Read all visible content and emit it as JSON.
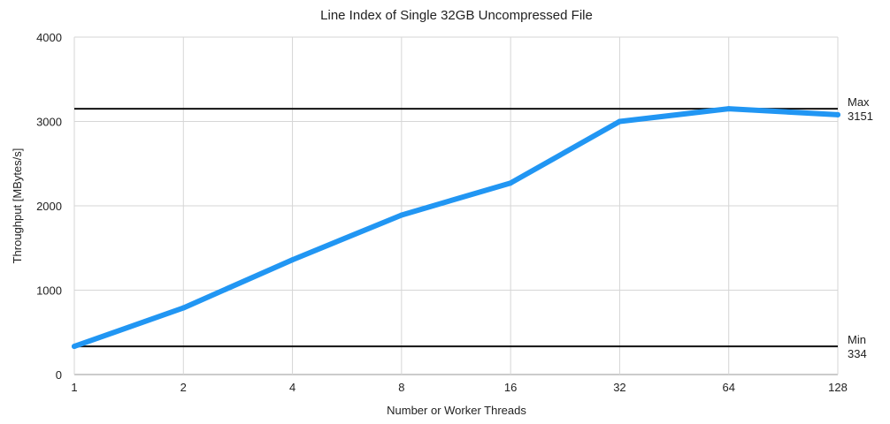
{
  "chart_data": {
    "type": "line",
    "title": "Line Index of Single 32GB Uncompressed File",
    "xlabel": "Number or Worker Threads",
    "ylabel": "Throughput [MBytes/s]",
    "x_scale": "log2",
    "categories": [
      "1",
      "2",
      "4",
      "8",
      "16",
      "32",
      "64",
      "128"
    ],
    "x": [
      1,
      2,
      4,
      8,
      16,
      32,
      64,
      128
    ],
    "ylim": [
      0,
      4000
    ],
    "yticks": [
      "0",
      "1000",
      "2000",
      "3000",
      "4000"
    ],
    "ytick_values": [
      0,
      1000,
      2000,
      3000,
      4000
    ],
    "grid": true,
    "series": [
      {
        "values": [
          334,
          790,
          1360,
          1890,
          2270,
          3000,
          3151,
          3080
        ],
        "color": "#2196F3"
      }
    ],
    "reference_lines": [
      {
        "label": "Max",
        "value_label": "3151",
        "value": 3151
      },
      {
        "label": "Min",
        "value_label": "334",
        "value": 334
      }
    ]
  }
}
